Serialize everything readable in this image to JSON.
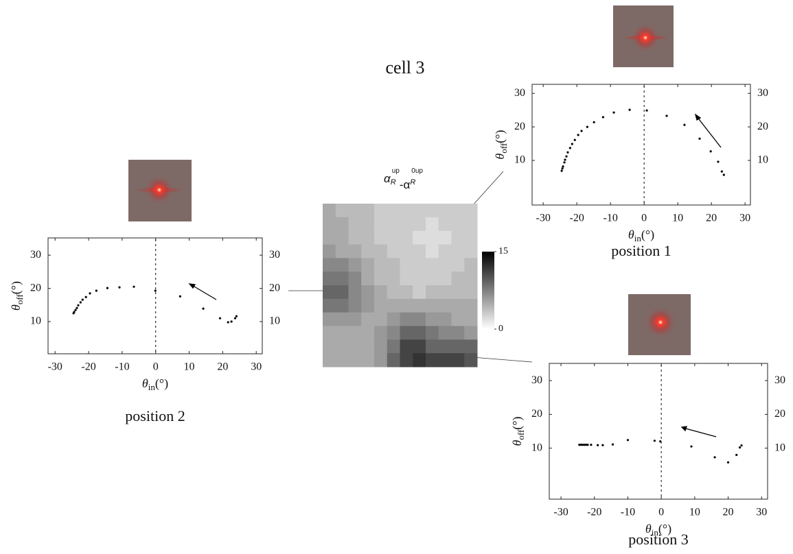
{
  "title": "cell 3",
  "chart_data": [
    {
      "type": "scatter",
      "title": "position 1",
      "x": [
        -24.5,
        -24.3,
        -24.1,
        -23.7,
        -23.5,
        -23.1,
        -22.7,
        -22.0,
        -21.4,
        -20.6,
        -19.6,
        -18.6,
        -16.9,
        -14.9,
        -12.2,
        -9.0,
        -4.3,
        0.8,
        6.7,
        12.0,
        16.5,
        19.8,
        22.0,
        23.1,
        23.7
      ],
      "values": [
        6.9,
        7.6,
        8.2,
        9.4,
        10.2,
        11.2,
        12.4,
        13.7,
        14.9,
        16.1,
        17.6,
        18.8,
        20.0,
        21.4,
        22.9,
        24.3,
        25.1,
        24.9,
        23.3,
        20.6,
        16.5,
        12.7,
        9.6,
        6.7,
        5.7
      ],
      "color": "#000000",
      "xlim": [
        -33.3,
        31.6
      ],
      "ylim": [
        -3.3,
        32.7
      ],
      "xticks": [
        -30,
        -20,
        -10,
        0,
        10,
        20,
        30
      ],
      "yticks": [
        10,
        20,
        30
      ],
      "xlabel": [
        "θ",
        "in",
        "(°)"
      ],
      "ylabel": [
        "θ",
        "off",
        "(°)"
      ]
    },
    {
      "type": "scatter",
      "title": "position 2",
      "x": [
        -24.5,
        -24.3,
        -23.9,
        -23.5,
        -23.1,
        -22.4,
        -21.8,
        -20.8,
        -19.6,
        -17.7,
        -14.4,
        -10.8,
        -6.5,
        -0.1,
        7.3,
        14.2,
        19.2,
        21.6,
        22.6,
        23.7,
        24.1
      ],
      "values": [
        12.5,
        12.9,
        13.5,
        14.1,
        14.9,
        15.8,
        16.6,
        17.4,
        18.5,
        19.3,
        20.1,
        20.3,
        20.5,
        19.3,
        17.6,
        13.9,
        11.0,
        9.8,
        10.0,
        11.0,
        11.6
      ],
      "color": "#000000",
      "xlim": [
        -32.1,
        31.8
      ],
      "ylim": [
        0.3,
        35.2
      ],
      "xticks": [
        -30,
        -20,
        -10,
        0,
        10,
        20,
        30
      ],
      "yticks": [
        10,
        20,
        30
      ],
      "xlabel": [
        "θ",
        "in",
        "(°)"
      ],
      "ylabel": [
        "θ",
        "off",
        "(°)"
      ]
    },
    {
      "type": "scatter",
      "title": "position 3",
      "x": [
        -24.5,
        -24.0,
        -23.5,
        -23.0,
        -22.5,
        -22.0,
        -21.0,
        -19.0,
        -17.5,
        -14.5,
        -10.0,
        -2.0,
        -0.3,
        9.0,
        16.0,
        20.0,
        22.5,
        23.5,
        24.0
      ],
      "values": [
        11.0,
        11.0,
        11.0,
        11.0,
        11.0,
        11.0,
        11.0,
        10.9,
        10.9,
        11.1,
        12.4,
        12.2,
        12.0,
        10.5,
        7.3,
        5.8,
        8.0,
        10.2,
        10.8
      ],
      "color": "#000000",
      "xlim": [
        -33.5,
        31.8
      ],
      "ylim": [
        -5.1,
        35.1
      ],
      "xticks": [
        -30,
        -20,
        -10,
        0,
        10,
        20,
        30
      ],
      "yticks": [
        10,
        20,
        30
      ],
      "xlabel": [
        "θ",
        "in",
        "(°)"
      ],
      "ylabel": [
        "θ",
        "off",
        "(°)"
      ]
    },
    {
      "type": "heatmap",
      "title": [
        "α",
        "R",
        "up",
        "-α",
        "R",
        "0up"
      ],
      "values": [
        [
          5,
          4,
          4,
          4,
          3,
          3,
          3,
          3,
          3,
          3,
          3,
          3
        ],
        [
          5,
          5,
          4,
          4,
          3,
          3,
          3,
          3,
          2,
          3,
          3,
          3
        ],
        [
          5,
          5,
          4,
          4,
          3,
          3,
          3,
          2,
          2,
          2,
          3,
          3
        ],
        [
          6,
          5,
          5,
          4,
          4,
          3,
          3,
          3,
          2,
          3,
          3,
          3
        ],
        [
          7,
          7,
          6,
          5,
          4,
          4,
          3,
          3,
          3,
          3,
          3,
          4
        ],
        [
          8,
          8,
          7,
          5,
          4,
          4,
          3,
          3,
          3,
          3,
          4,
          4
        ],
        [
          9,
          9,
          7,
          6,
          5,
          4,
          4,
          3,
          4,
          4,
          4,
          4
        ],
        [
          8,
          8,
          7,
          6,
          5,
          5,
          5,
          5,
          5,
          5,
          5,
          5
        ],
        [
          6,
          6,
          6,
          5,
          5,
          6,
          7,
          7,
          6,
          6,
          5,
          5
        ],
        [
          5,
          5,
          5,
          5,
          6,
          7,
          9,
          9,
          8,
          7,
          7,
          6
        ],
        [
          5,
          5,
          5,
          5,
          6,
          8,
          11,
          11,
          9,
          9,
          9,
          9
        ],
        [
          5,
          5,
          5,
          5,
          6,
          9,
          11,
          12,
          11,
          11,
          11,
          10
        ]
      ],
      "zlim": [
        0,
        15
      ],
      "zticks": [
        0,
        15
      ]
    }
  ]
}
